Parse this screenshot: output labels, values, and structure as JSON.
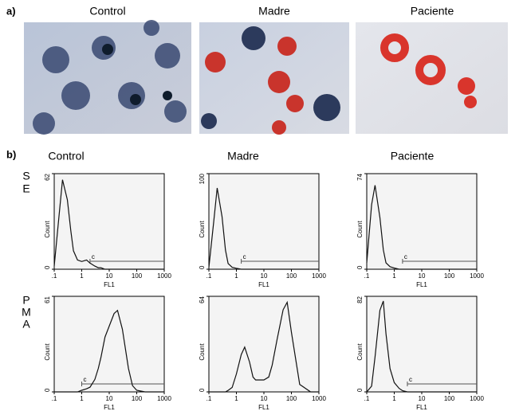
{
  "panel_a": {
    "label": "a)",
    "titles": [
      "Control",
      "Madre",
      "Paciente"
    ]
  },
  "panel_b": {
    "label": "b)",
    "columns": [
      "Control",
      "Madre",
      "Paciente"
    ],
    "rows": [
      [
        "S",
        "E"
      ],
      [
        "P",
        "M",
        "A"
      ]
    ]
  },
  "chart_data": [
    {
      "type": "line",
      "xlabel": "FL1",
      "ylabel": "Count",
      "log_x": true,
      "marker_label": "c",
      "gate": [
        2,
        1000
      ],
      "xlim": [
        0.1,
        1000
      ],
      "xticks": [
        {
          "value": 0.1,
          "label": ".1"
        },
        1,
        10,
        100,
        1000
      ],
      "ylim": [
        0,
        62
      ],
      "yticks": [
        0,
        62
      ],
      "x": [
        0.1,
        0.15,
        0.2,
        0.3,
        0.4,
        0.5,
        0.7,
        1,
        1.5,
        2,
        3,
        4,
        5,
        7,
        10,
        15,
        20,
        30,
        50,
        70,
        100,
        200,
        500,
        1000
      ],
      "values": [
        2,
        35,
        58,
        45,
        25,
        12,
        6,
        5,
        6,
        4,
        2,
        1,
        1,
        0,
        0,
        0,
        0,
        0,
        0,
        0,
        0,
        0,
        0,
        0
      ]
    },
    {
      "type": "line",
      "xlabel": "FL1",
      "ylabel": "Count",
      "log_x": true,
      "marker_label": "c",
      "gate": [
        1.5,
        1000
      ],
      "xlim": [
        0.1,
        1000
      ],
      "xticks": [
        {
          "value": 0.1,
          "label": ".1"
        },
        1,
        10,
        100,
        1000
      ],
      "ylim": [
        0,
        100
      ],
      "yticks": [
        0,
        100
      ],
      "x": [
        0.1,
        0.15,
        0.2,
        0.3,
        0.4,
        0.5,
        0.7,
        1,
        1.5,
        2,
        3,
        4,
        5,
        7,
        10,
        15,
        20,
        30,
        50,
        70,
        100,
        200,
        500,
        1000
      ],
      "values": [
        2,
        50,
        85,
        55,
        20,
        6,
        2,
        1,
        0,
        0,
        0,
        0,
        0,
        0,
        0,
        0,
        0,
        0,
        0,
        0,
        0,
        0,
        0,
        0
      ]
    },
    {
      "type": "line",
      "xlabel": "FL1",
      "ylabel": "Count",
      "log_x": true,
      "marker_label": "c",
      "gate": [
        2,
        1000
      ],
      "xlim": [
        0.1,
        1000
      ],
      "xticks": [
        {
          "value": 0.1,
          "label": ".1"
        },
        1,
        10,
        100,
        1000
      ],
      "ylim": [
        0,
        74
      ],
      "yticks": [
        0,
        74
      ],
      "x": [
        0.1,
        0.15,
        0.2,
        0.3,
        0.4,
        0.5,
        0.7,
        1,
        1.5,
        2,
        3,
        4,
        5,
        7,
        10,
        15,
        20,
        30,
        50,
        70,
        100,
        200,
        500,
        1000
      ],
      "values": [
        5,
        50,
        65,
        40,
        15,
        5,
        2,
        1,
        0,
        0,
        0,
        0,
        0,
        0,
        0,
        0,
        0,
        0,
        0,
        0,
        0,
        0,
        0,
        0
      ]
    },
    {
      "type": "line",
      "xlabel": "FL1",
      "ylabel": "Count",
      "log_x": true,
      "marker_label": "c",
      "gate": [
        1,
        1000
      ],
      "xlim": [
        0.1,
        1000
      ],
      "xticks": [
        {
          "value": 0.1,
          "label": ".1"
        },
        1,
        10,
        100,
        1000
      ],
      "ylim": [
        0,
        61
      ],
      "yticks": [
        0,
        61
      ],
      "x": [
        0.1,
        0.15,
        0.2,
        0.3,
        0.4,
        0.5,
        0.7,
        1,
        1.5,
        2,
        3,
        4,
        5,
        7,
        10,
        15,
        20,
        30,
        50,
        70,
        100,
        200,
        500,
        1000
      ],
      "values": [
        0,
        0,
        0,
        0,
        0,
        0,
        0,
        1,
        2,
        3,
        8,
        15,
        22,
        35,
        42,
        50,
        52,
        40,
        15,
        4,
        1,
        0,
        0,
        0
      ]
    },
    {
      "type": "line",
      "xlabel": "FL1",
      "ylabel": "Count",
      "log_x": true,
      "xlim": [
        0.1,
        1000
      ],
      "xticks": [
        {
          "value": 0.1,
          "label": ".1"
        },
        1,
        10,
        100,
        1000
      ],
      "ylim": [
        0,
        64
      ],
      "yticks": [
        0,
        64
      ],
      "x": [
        0.1,
        0.15,
        0.2,
        0.3,
        0.4,
        0.5,
        0.7,
        1,
        1.5,
        2,
        3,
        4,
        5,
        7,
        10,
        15,
        20,
        30,
        50,
        70,
        100,
        200,
        500,
        1000
      ],
      "values": [
        0,
        0,
        0,
        0,
        0,
        1,
        3,
        12,
        25,
        30,
        20,
        10,
        8,
        8,
        8,
        10,
        18,
        35,
        55,
        60,
        40,
        5,
        0,
        0
      ]
    },
    {
      "type": "line",
      "xlabel": "FL1",
      "ylabel": "Count",
      "log_x": true,
      "marker_label": "c",
      "gate": [
        3,
        1000
      ],
      "xlim": [
        0.1,
        1000
      ],
      "xticks": [
        {
          "value": 0.1,
          "label": ".1"
        },
        1,
        10,
        100,
        1000
      ],
      "ylim": [
        0,
        82
      ],
      "yticks": [
        0,
        82
      ],
      "x": [
        0.1,
        0.15,
        0.2,
        0.3,
        0.4,
        0.5,
        0.7,
        1,
        1.5,
        2,
        3,
        4,
        5,
        7,
        10,
        15,
        20,
        30,
        50,
        70,
        100,
        200,
        500,
        1000
      ],
      "values": [
        0,
        5,
        30,
        70,
        78,
        50,
        20,
        8,
        3,
        1,
        0,
        0,
        0,
        0,
        0,
        0,
        0,
        0,
        0,
        0,
        0,
        0,
        0,
        0
      ]
    }
  ]
}
